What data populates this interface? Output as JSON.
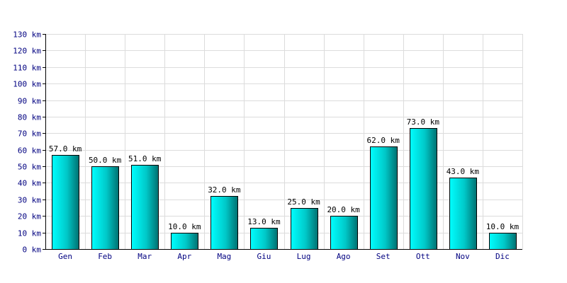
{
  "chart_data": {
    "type": "bar",
    "categories": [
      "Gen",
      "Feb",
      "Mar",
      "Apr",
      "Mag",
      "Giu",
      "Lug",
      "Ago",
      "Set",
      "Ott",
      "Nov",
      "Dic"
    ],
    "values": [
      57,
      50,
      51,
      10,
      32,
      13,
      25,
      20,
      62,
      73,
      43,
      10
    ],
    "data_labels": [
      "57.0 km",
      "50.0 km",
      "51.0 km",
      "10.0 km",
      "32.0 km",
      "13.0 km",
      "25.0 km",
      "20.0 km",
      "62.0 km",
      "73.0 km",
      "43.0 km",
      "10.0 km"
    ],
    "y_ticks": [
      0,
      10,
      20,
      30,
      40,
      50,
      60,
      70,
      80,
      90,
      100,
      110,
      120,
      130
    ],
    "y_tick_labels": [
      "0 km",
      "10 km",
      "20 km",
      "30 km",
      "40 km",
      "50 km",
      "60 km",
      "70 km",
      "80 km",
      "90 km",
      "100 km",
      "110 km",
      "120 km",
      "130 km"
    ],
    "ylim": [
      0,
      130
    ],
    "grid": true,
    "colors": {
      "bar_light": "#00ffff",
      "bar_dark": "#007070",
      "bar_outline": "#000000",
      "grid": "#dcdcdc",
      "axis": "#000000",
      "text": "#000080"
    }
  }
}
